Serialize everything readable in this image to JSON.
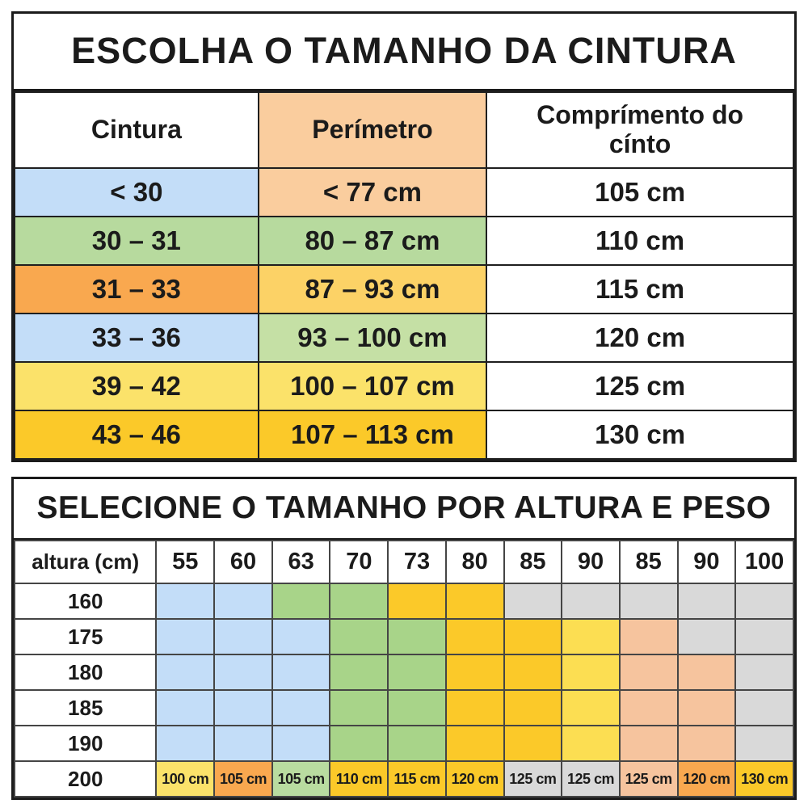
{
  "palette": {
    "white": "#FFFFFF",
    "headerorange": "#FACD9E",
    "blue": "#C3DDF8",
    "green2": "#B7DA9E",
    "orange": "#F9A84F",
    "yellowdark": "#FCD266",
    "lightgreen": "#C5E0A5",
    "lightgreen2": "#B9DCA0",
    "yellow": "#FBE26A",
    "gold": "#FBC929",
    "green": "#A8D489",
    "lightyellow": "#FCDE52",
    "peach": "#F6C49E",
    "gray": "#D9D9D9"
  },
  "chart_data": [
    {
      "type": "table",
      "title": "ESCOLHA O TAMANHO DA CINTURA",
      "columns": [
        {
          "label": "Cintura",
          "color": "white"
        },
        {
          "label": "Perímetro",
          "color": "headerorange"
        },
        {
          "label": "Comprímento do cínto",
          "color": "white"
        }
      ],
      "rows": [
        {
          "cells": [
            {
              "label": "< 30",
              "color": "blue"
            },
            {
              "label": "< 77 cm",
              "color": "headerorange"
            },
            {
              "label": "105 cm",
              "color": "white"
            }
          ]
        },
        {
          "cells": [
            {
              "label": "30 – 31",
              "color": "green2"
            },
            {
              "label": "80 – 87 cm",
              "color": "green2"
            },
            {
              "label": "110 cm",
              "color": "white"
            }
          ]
        },
        {
          "cells": [
            {
              "label": "31 – 33",
              "color": "orange"
            },
            {
              "label": "87 – 93 cm",
              "color": "yellowdark"
            },
            {
              "label": "115 cm",
              "color": "white"
            }
          ]
        },
        {
          "cells": [
            {
              "label": "33 – 36",
              "color": "blue"
            },
            {
              "label": "93 – 100 cm",
              "color": "lightgreen"
            },
            {
              "label": "120 cm",
              "color": "white"
            }
          ]
        },
        {
          "cells": [
            {
              "label": "39 – 42",
              "color": "yellow"
            },
            {
              "label": "100 – 107 cm",
              "color": "yellow"
            },
            {
              "label": "125 cm",
              "color": "white"
            }
          ]
        },
        {
          "cells": [
            {
              "label": "43 – 46",
              "color": "gold"
            },
            {
              "label": "107 – 113 cm",
              "color": "gold"
            },
            {
              "label": "130 cm",
              "color": "white"
            }
          ]
        }
      ]
    },
    {
      "type": "table",
      "title": "SELECIONE O TAMANHO POR ALTURA E PESO",
      "columns": [
        {
          "label": "altura (cm)",
          "color": "white"
        },
        {
          "label": "55",
          "color": "white"
        },
        {
          "label": "60",
          "color": "white"
        },
        {
          "label": "63",
          "color": "white"
        },
        {
          "label": "70",
          "color": "white"
        },
        {
          "label": "73",
          "color": "white"
        },
        {
          "label": "80",
          "color": "white"
        },
        {
          "label": "85",
          "color": "white"
        },
        {
          "label": "90",
          "color": "white"
        },
        {
          "label": "85",
          "color": "white"
        },
        {
          "label": "90",
          "color": "white"
        },
        {
          "label": "100",
          "color": "white"
        }
      ],
      "rows": [
        {
          "header": "160",
          "cells": [
            {
              "color": "blue"
            },
            {
              "color": "blue"
            },
            {
              "color": "green"
            },
            {
              "color": "green"
            },
            {
              "color": "gold"
            },
            {
              "color": "gold"
            },
            {
              "color": "gray"
            },
            {
              "color": "gray"
            },
            {
              "color": "gray"
            },
            {
              "color": "gray"
            },
            {
              "color": "gray"
            }
          ]
        },
        {
          "header": "175",
          "cells": [
            {
              "color": "blue"
            },
            {
              "color": "blue"
            },
            {
              "color": "blue"
            },
            {
              "color": "green"
            },
            {
              "color": "green"
            },
            {
              "color": "gold"
            },
            {
              "color": "gold"
            },
            {
              "color": "lightyellow"
            },
            {
              "color": "peach"
            },
            {
              "color": "gray"
            },
            {
              "color": "gray"
            }
          ]
        },
        {
          "header": "180",
          "cells": [
            {
              "color": "blue"
            },
            {
              "color": "blue"
            },
            {
              "color": "blue"
            },
            {
              "color": "green"
            },
            {
              "color": "green"
            },
            {
              "color": "gold"
            },
            {
              "color": "gold"
            },
            {
              "color": "lightyellow"
            },
            {
              "color": "peach"
            },
            {
              "color": "peach"
            },
            {
              "color": "gray"
            }
          ]
        },
        {
          "header": "185",
          "cells": [
            {
              "color": "blue"
            },
            {
              "color": "blue"
            },
            {
              "color": "blue"
            },
            {
              "color": "green"
            },
            {
              "color": "green"
            },
            {
              "color": "gold"
            },
            {
              "color": "gold"
            },
            {
              "color": "lightyellow"
            },
            {
              "color": "peach"
            },
            {
              "color": "peach"
            },
            {
              "color": "gray"
            }
          ]
        },
        {
          "header": "190",
          "cells": [
            {
              "color": "blue"
            },
            {
              "color": "blue"
            },
            {
              "color": "blue"
            },
            {
              "color": "green"
            },
            {
              "color": "green"
            },
            {
              "color": "gold"
            },
            {
              "color": "gold"
            },
            {
              "color": "lightyellow"
            },
            {
              "color": "peach"
            },
            {
              "color": "peach"
            },
            {
              "color": "gray"
            }
          ]
        },
        {
          "header": "200",
          "cells": [
            {
              "label": "100 cm",
              "color": "yellow"
            },
            {
              "label": "105 cm",
              "color": "orange"
            },
            {
              "label": "105 cm",
              "color": "lightgreen2"
            },
            {
              "label": "110 cm",
              "color": "gold"
            },
            {
              "label": "115 cm",
              "color": "gold"
            },
            {
              "label": "120 cm",
              "color": "gold"
            },
            {
              "label": "125 cm",
              "color": "gray"
            },
            {
              "label": "125 cm",
              "color": "gray"
            },
            {
              "label": "125 cm",
              "color": "peach"
            },
            {
              "label": "120 cm",
              "color": "orange"
            },
            {
              "label": "130 cm",
              "color": "gold"
            }
          ]
        }
      ]
    }
  ]
}
